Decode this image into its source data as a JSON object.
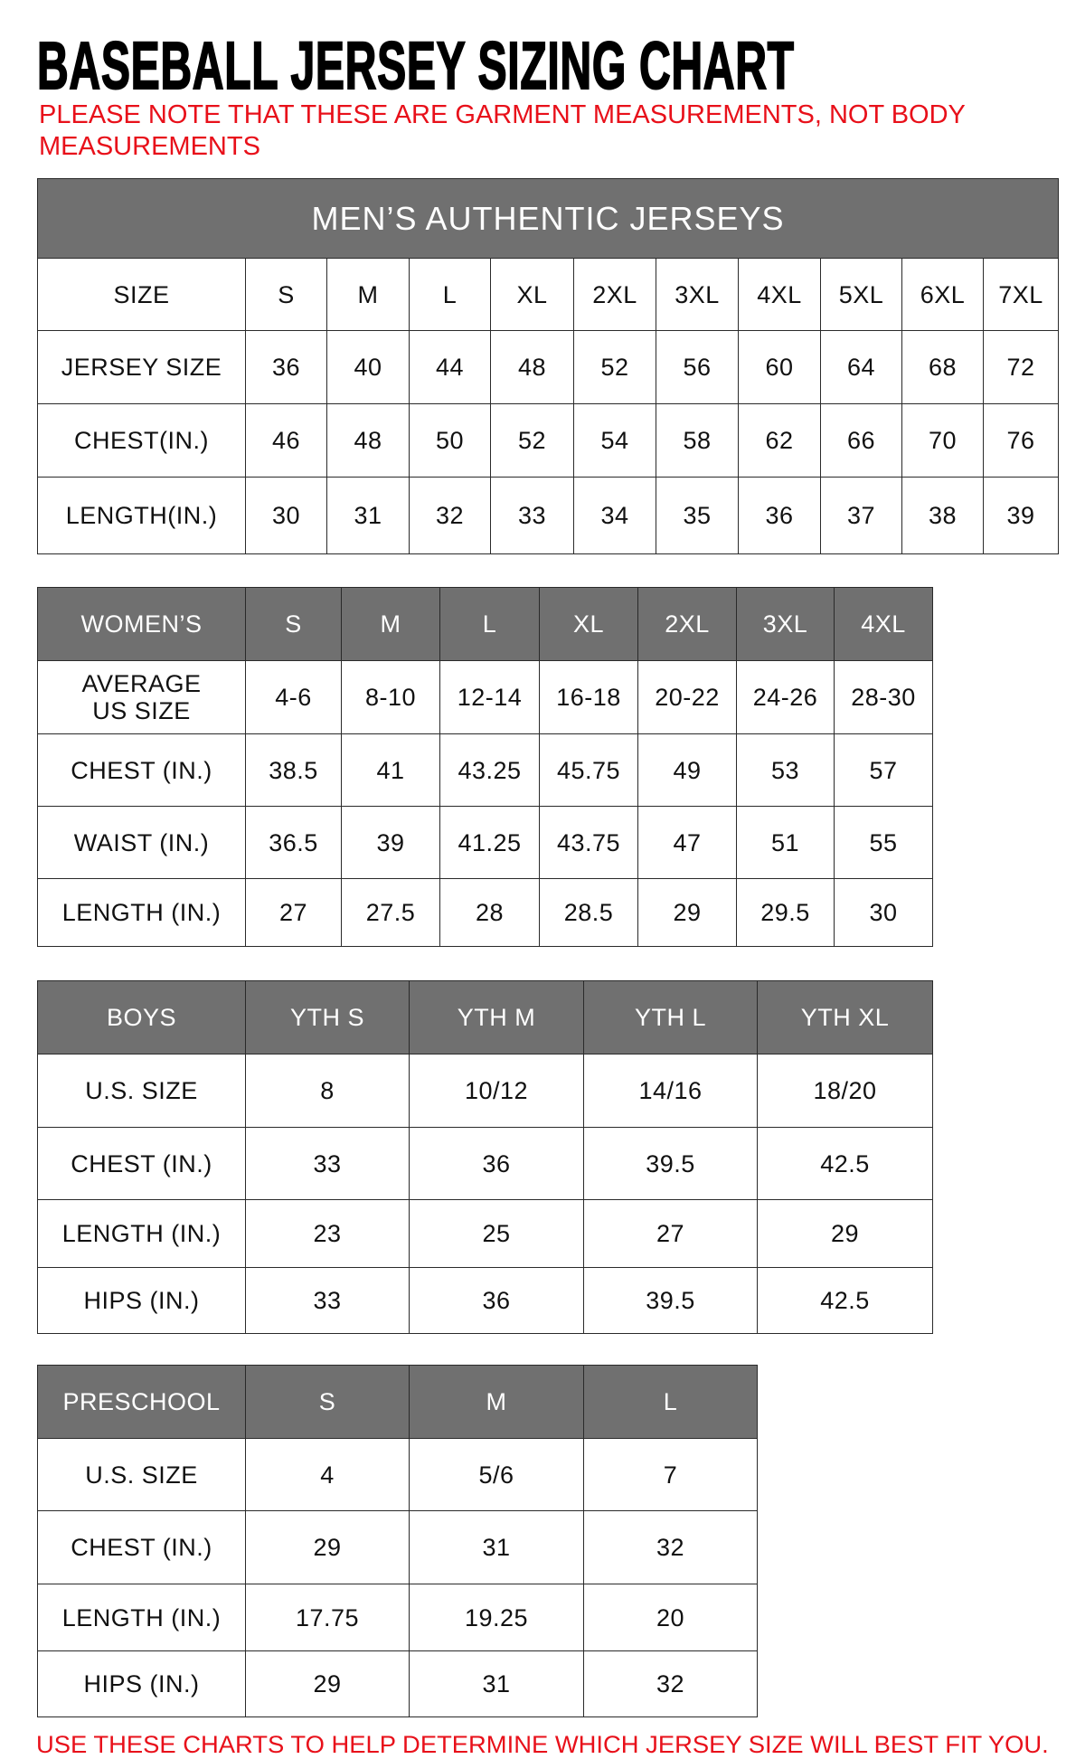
{
  "title": "BASEBALL JERSEY SIZING CHART",
  "note": "PLEASE NOTE THAT THESE ARE GARMENT MEASUREMENTS, NOT BODY MEASUREMENTS",
  "footer": "USE THESE CHARTS TO HELP DETERMINE WHICH JERSEY SIZE WILL BEST FIT YOU.",
  "colors": {
    "header_bg": "#707070",
    "note_red": "#e8101a"
  },
  "tables": [
    {
      "id": "mens",
      "banner": "MEN’S AUTHENTIC JERSEYS",
      "header": [
        "SIZE",
        "S",
        "M",
        "L",
        "XL",
        "2XL",
        "3XL",
        "4XL",
        "5XL",
        "6XL",
        "7XL"
      ],
      "header_style": "plain",
      "rows": [
        [
          "JERSEY SIZE",
          "36",
          "40",
          "44",
          "48",
          "52",
          "56",
          "60",
          "64",
          "68",
          "72"
        ],
        [
          "CHEST(IN.)",
          "46",
          "48",
          "50",
          "52",
          "54",
          "58",
          "62",
          "66",
          "70",
          "76"
        ],
        [
          "LENGTH(IN.)",
          "30",
          "31",
          "32",
          "33",
          "34",
          "35",
          "36",
          "37",
          "38",
          "39"
        ]
      ]
    },
    {
      "id": "womens",
      "header": [
        "WOMEN’S",
        "S",
        "M",
        "L",
        "XL",
        "2XL",
        "3XL",
        "4XL"
      ],
      "header_style": "gray",
      "rows": [
        [
          "AVERAGE\nUS SIZE",
          "4-6",
          "8-10",
          "12-14",
          "16-18",
          "20-22",
          "24-26",
          "28-30"
        ],
        [
          "CHEST (IN.)",
          "38.5",
          "41",
          "43.25",
          "45.75",
          "49",
          "53",
          "57"
        ],
        [
          "WAIST (IN.)",
          "36.5",
          "39",
          "41.25",
          "43.75",
          "47",
          "51",
          "55"
        ],
        [
          "LENGTH (IN.)",
          "27",
          "27.5",
          "28",
          "28.5",
          "29",
          "29.5",
          "30"
        ]
      ]
    },
    {
      "id": "boys",
      "header": [
        "BOYS",
        "YTH S",
        "YTH M",
        "YTH L",
        "YTH XL"
      ],
      "header_style": "gray",
      "rows": [
        [
          "U.S. SIZE",
          "8",
          "10/12",
          "14/16",
          "18/20"
        ],
        [
          "CHEST (IN.)",
          "33",
          "36",
          "39.5",
          "42.5"
        ],
        [
          "LENGTH (IN.)",
          "23",
          "25",
          "27",
          "29"
        ],
        [
          "HIPS (IN.)",
          "33",
          "36",
          "39.5",
          "42.5"
        ]
      ]
    },
    {
      "id": "preschool",
      "header": [
        "PRESCHOOL",
        "S",
        "M",
        "L"
      ],
      "header_style": "gray",
      "rows": [
        [
          "U.S. SIZE",
          "4",
          "5/6",
          "7"
        ],
        [
          "CHEST (IN.)",
          "29",
          "31",
          "32"
        ],
        [
          "LENGTH (IN.)",
          "17.75",
          "19.25",
          "20"
        ],
        [
          "HIPS (IN.)",
          "29",
          "31",
          "32"
        ]
      ]
    }
  ]
}
